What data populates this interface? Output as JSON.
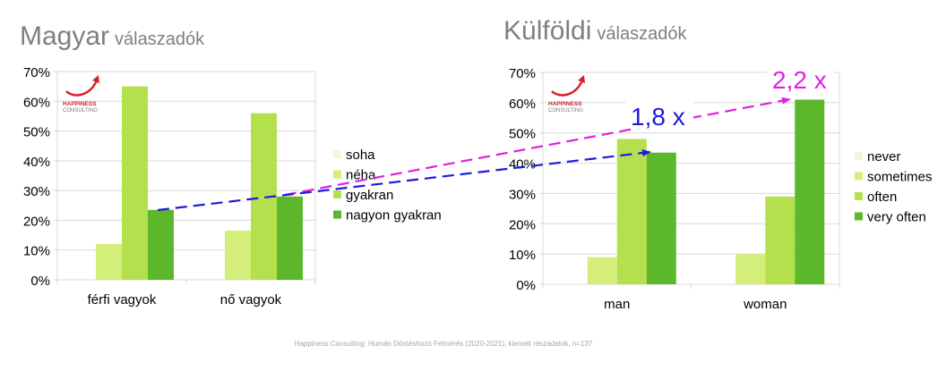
{
  "titles": {
    "left": {
      "main": "Magyar",
      "sub": "válaszadók"
    },
    "right": {
      "main": "Külföldi",
      "sub": "válaszadók"
    }
  },
  "logo": {
    "line1": "HAPPINESS",
    "line2": "CONSULTING"
  },
  "annotations": {
    "pink": {
      "text": "2,2 x",
      "color": "#e020e0"
    },
    "blue": {
      "text": "1,8 x",
      "color": "#1c1cdc"
    }
  },
  "footer": "Happiness Consulting: Humán Döntéshozó Felmérés (2020-2021), kiemelt részadatok, n=137",
  "chart_data": [
    {
      "type": "bar",
      "categories": [
        "férfi vagyok",
        "nő vagyok"
      ],
      "series": [
        {
          "name": "soha",
          "color": "#f0f8d8",
          "values": [
            0,
            0
          ]
        },
        {
          "name": "néha",
          "color": "#d4ee7a",
          "values": [
            12,
            16.5
          ]
        },
        {
          "name": "gyakran",
          "color": "#b5e04e",
          "values": [
            65,
            56
          ]
        },
        {
          "name": "nagyon gyakran",
          "color": "#5cb82a",
          "values": [
            23.5,
            28
          ]
        }
      ],
      "ylim": [
        0,
        70
      ],
      "yticks": [
        "0%",
        "10%",
        "20%",
        "30%",
        "40%",
        "50%",
        "60%",
        "70%"
      ],
      "grid": true,
      "legend": "right"
    },
    {
      "type": "bar",
      "categories": [
        "man",
        "woman"
      ],
      "series": [
        {
          "name": "never",
          "color": "#f0f8d8",
          "values": [
            0,
            0
          ]
        },
        {
          "name": "sometimes",
          "color": "#d4ee7a",
          "values": [
            9,
            10
          ]
        },
        {
          "name": "often",
          "color": "#b5e04e",
          "values": [
            48,
            29
          ]
        },
        {
          "name": "very often",
          "color": "#5cb82a",
          "values": [
            43.5,
            61
          ]
        }
      ],
      "ylim": [
        0,
        70
      ],
      "yticks": [
        "0%",
        "10%",
        "20%",
        "30%",
        "40%",
        "50%",
        "60%",
        "70%"
      ],
      "grid": true,
      "legend": "right"
    }
  ]
}
